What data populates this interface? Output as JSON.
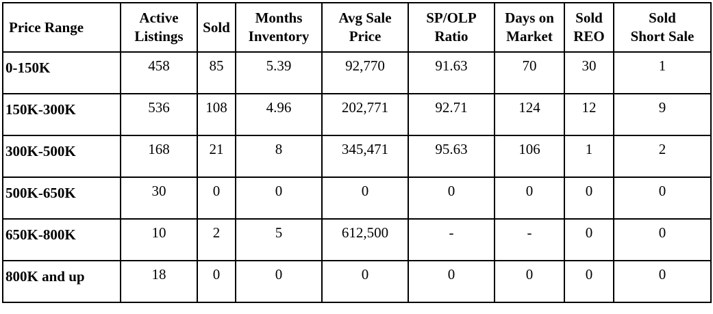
{
  "table": {
    "headers": [
      {
        "line1": "Price Range",
        "line2": ""
      },
      {
        "line1": "Active",
        "line2": "Listings"
      },
      {
        "line1": "Sold",
        "line2": ""
      },
      {
        "line1": "Months",
        "line2": "Inventory"
      },
      {
        "line1": "Avg Sale",
        "line2": "Price"
      },
      {
        "line1": "SP/OLP",
        "line2": "Ratio"
      },
      {
        "line1": "Days on",
        "line2": "Market"
      },
      {
        "line1": "Sold",
        "line2": "REO"
      },
      {
        "line1": "Sold",
        "line2": "Short Sale"
      }
    ],
    "rows": [
      [
        "0-150K",
        "458",
        "85",
        "5.39",
        "92,770",
        "91.63",
        "70",
        "30",
        "1"
      ],
      [
        "150K-300K",
        "536",
        "108",
        "4.96",
        "202,771",
        "92.71",
        "124",
        "12",
        "9"
      ],
      [
        "300K-500K",
        "168",
        "21",
        "8",
        "345,471",
        "95.63",
        "106",
        "1",
        "2"
      ],
      [
        "500K-650K",
        "30",
        "0",
        "0",
        "0",
        "0",
        "0",
        "0",
        "0"
      ],
      [
        "650K-800K",
        "10",
        "2",
        "5",
        "612,500",
        "-",
        "-",
        "0",
        "0"
      ],
      [
        "800K and up",
        "18",
        "0",
        "0",
        "0",
        "0",
        "0",
        "0",
        "0"
      ]
    ]
  }
}
